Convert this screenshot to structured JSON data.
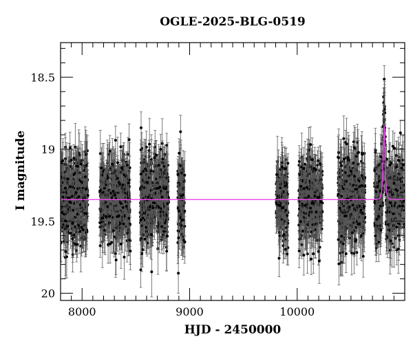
{
  "chart_data": {
    "type": "scatter",
    "title": "OGLE-2025-BLG-0519",
    "xlabel": "HJD - 2450000",
    "ylabel": "I magnitude",
    "xlim": [
      7800,
      11000
    ],
    "ylim": [
      20.05,
      18.26
    ],
    "y_inverted": true,
    "x_ticks": [
      8000,
      9000,
      10000
    ],
    "x_tick_labels": [
      "8000",
      "9000",
      "10000"
    ],
    "y_ticks": [
      18.5,
      19,
      19.5,
      20
    ],
    "y_tick_labels": [
      "18.5",
      "19",
      "19.5",
      "20"
    ],
    "grid": false,
    "observing_seasons": [
      [
        7800,
        8055
      ],
      [
        8165,
        8450
      ],
      [
        8540,
        8805
      ],
      [
        8890,
        8955
      ],
      [
        9805,
        9915
      ],
      [
        10015,
        10235
      ],
      [
        10380,
        10630
      ],
      [
        10720,
        10990
      ]
    ],
    "baseline_mag": 19.35,
    "typical_scatter_mag": 0.15,
    "typical_error_mag": 0.12,
    "model": {
      "type": "point-lens",
      "t0": 10808,
      "tE": 12,
      "u0": 0.75,
      "peak_mag": 18.86,
      "baseline_mag": 19.35
    },
    "colors": {
      "points": "#000000",
      "errorbars": "#555555",
      "model": "#ee44ee"
    }
  }
}
